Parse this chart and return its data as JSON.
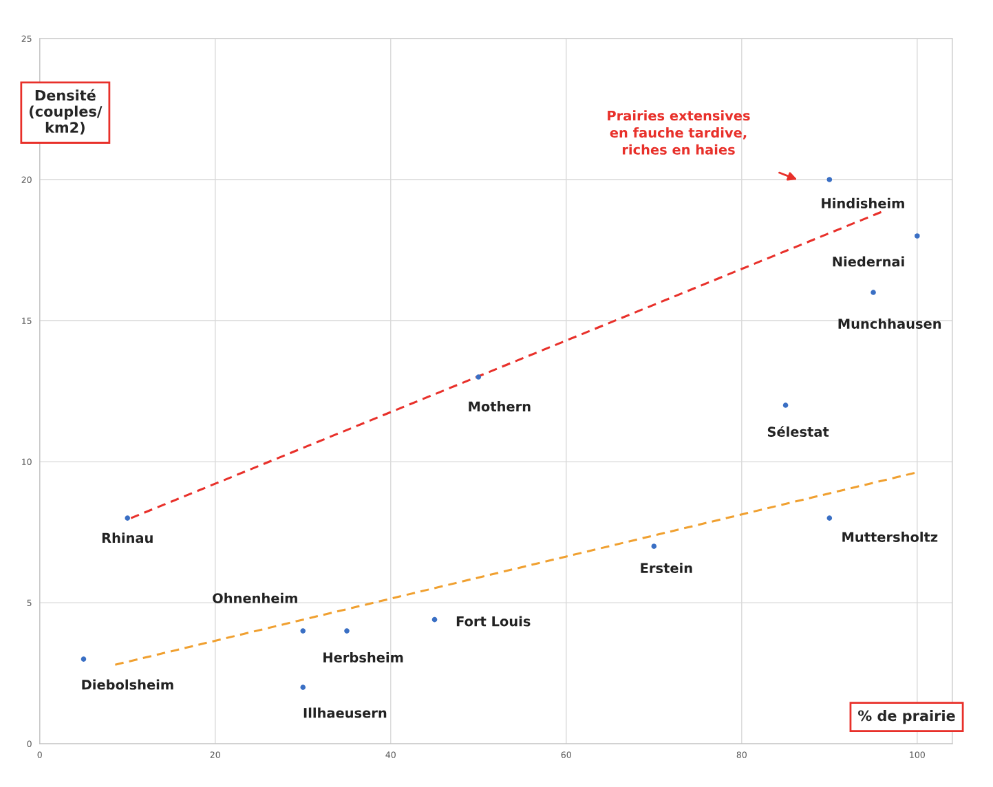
{
  "chart_data": {
    "type": "scatter",
    "xlabel": "% de prairie",
    "ylabel": "Densité\n(couples/\nkm2)",
    "xlim": [
      0,
      104
    ],
    "xticks": [
      0,
      20,
      40,
      60,
      80,
      100
    ],
    "ylim": [
      0,
      25
    ],
    "yticks": [
      0,
      5,
      10,
      15,
      20,
      25
    ],
    "grid": true,
    "series": [
      {
        "marker": "circle",
        "color": "#3a6fc4",
        "x": [
          5,
          10,
          30,
          35,
          30,
          45,
          50,
          70,
          85,
          90,
          90,
          95,
          100
        ],
        "values": [
          3,
          8,
          4,
          4,
          2,
          4.4,
          13,
          7,
          12,
          20,
          8,
          16,
          18
        ]
      },
      {
        "type": "line",
        "line_style": "dashed",
        "color": "#e8302a",
        "x": [
          10.4,
          95.9
        ],
        "values": [
          8.0,
          18.85
        ]
      },
      {
        "type": "line",
        "line_style": "dashed",
        "color": "#f0a030",
        "x": [
          8.6,
          99.7
        ],
        "values": [
          2.8,
          9.6
        ]
      }
    ],
    "annotations": [
      {
        "text": "Diebolsheim",
        "x": 5,
        "y": 3
      },
      {
        "text": "Rhinau",
        "x": 10,
        "y": 8
      },
      {
        "text": "Ohnenheim",
        "x": 30,
        "y": 4
      },
      {
        "text": "Herbsheim",
        "x": 35,
        "y": 4
      },
      {
        "text": "Illhaeusern",
        "x": 30,
        "y": 2
      },
      {
        "text": "Fort Louis",
        "x": 45,
        "y": 4.4
      },
      {
        "text": "Mothern",
        "x": 50,
        "y": 13
      },
      {
        "text": "Erstein",
        "x": 70,
        "y": 7
      },
      {
        "text": "Sélestat",
        "x": 85,
        "y": 12
      },
      {
        "text": "Hindisheim",
        "x": 90,
        "y": 20
      },
      {
        "text": "Muttersholtz",
        "x": 90,
        "y": 8
      },
      {
        "text": "Munchhausen",
        "x": 95,
        "y": 16
      },
      {
        "text": "Niedernai",
        "x": 100,
        "y": 18
      },
      "Prairies extensives\nen fauche tardive,\nriches en haies"
    ]
  }
}
